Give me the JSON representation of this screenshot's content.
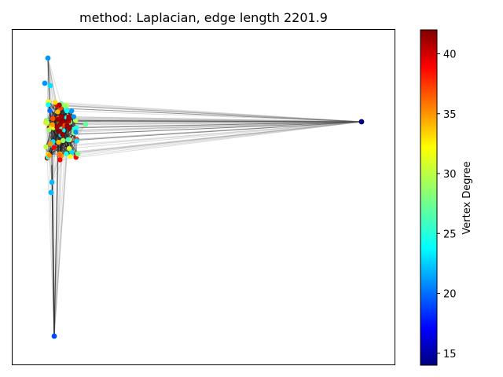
{
  "figure": {
    "title": "method: Laplacian, edge length 2201.9"
  },
  "colorbar": {
    "label": "Vertex Degree",
    "min": 14,
    "max": 42,
    "ticks": [
      "15",
      "20",
      "25",
      "30",
      "35",
      "40"
    ],
    "colormap": "jet"
  },
  "graph": {
    "layout": "Laplacian",
    "edge_length": 2201.9,
    "nodes": [
      {
        "id": "hub",
        "degree": 14
      },
      {
        "id": "top",
        "degree": 21
      },
      {
        "id": "bottom",
        "degree": 19
      },
      {
        "id": "right-small",
        "degree": 27
      },
      {
        "id": "lower-right",
        "degree": 28
      },
      {
        "id": "mid-left-1",
        "degree": 21
      },
      {
        "id": "mid-left-2",
        "degree": 23
      },
      {
        "id": "low-left-1",
        "degree": 22
      },
      {
        "id": "low-left-2",
        "degree": 22
      }
    ]
  }
}
